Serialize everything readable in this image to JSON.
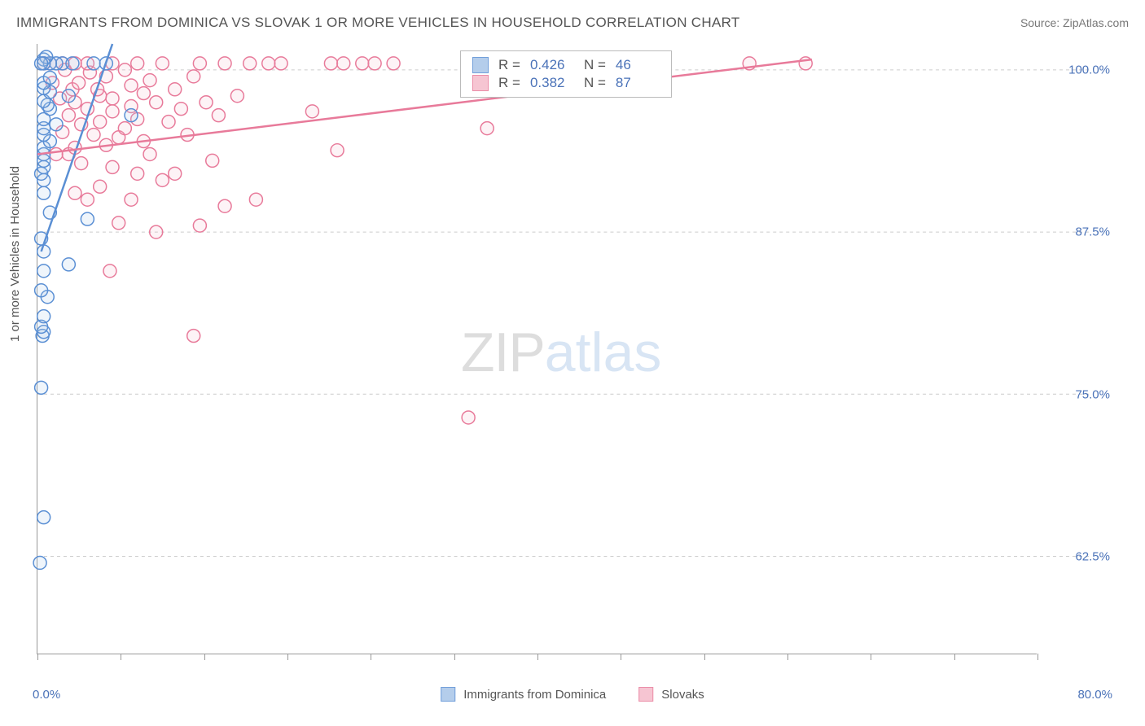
{
  "title": "IMMIGRANTS FROM DOMINICA VS SLOVAK 1 OR MORE VEHICLES IN HOUSEHOLD CORRELATION CHART",
  "source_label": "Source: ",
  "source_value": "ZipAtlas.com",
  "y_axis_title": "1 or more Vehicles in Household",
  "watermark_a": "ZIP",
  "watermark_b": "atlas",
  "chart": {
    "type": "scatter",
    "xlim": [
      0,
      80
    ],
    "ylim": [
      55,
      102
    ],
    "x_ticks": [
      0,
      6.67,
      13.33,
      20,
      26.67,
      33.33,
      40,
      46.67,
      53.33,
      60,
      66.67,
      73.33,
      80
    ],
    "y_gridlines": [
      62.5,
      75.0,
      87.5,
      100.0
    ],
    "y_tick_labels": [
      "62.5%",
      "75.0%",
      "87.5%",
      "100.0%"
    ],
    "x_label_min": "0.0%",
    "x_label_max": "80.0%",
    "background_color": "#ffffff",
    "grid_color": "#cccccc",
    "axis_color": "#999999",
    "tick_label_color": "#4a72b8",
    "marker_radius": 8,
    "marker_stroke_width": 1.5,
    "marker_fill_opacity": 0.18,
    "trend_line_width": 2.5
  },
  "series": [
    {
      "name": "Immigrants from Dominica",
      "color_stroke": "#5a8fd4",
      "color_fill": "#a8c5e8",
      "r_value": "0.426",
      "n_value": "46",
      "trend": {
        "x1": 0.3,
        "y1": 86,
        "x2": 6,
        "y2": 102
      },
      "points": [
        [
          0.2,
          62.0
        ],
        [
          0.5,
          65.5
        ],
        [
          0.3,
          75.5
        ],
        [
          0.4,
          79.5
        ],
        [
          0.5,
          79.8
        ],
        [
          0.3,
          80.2
        ],
        [
          0.5,
          81.0
        ],
        [
          0.8,
          82.5
        ],
        [
          0.3,
          83.0
        ],
        [
          0.5,
          84.5
        ],
        [
          2.5,
          85.0
        ],
        [
          0.5,
          86.0
        ],
        [
          0.3,
          87.0
        ],
        [
          4.0,
          88.5
        ],
        [
          1.0,
          89.0
        ],
        [
          0.5,
          90.5
        ],
        [
          0.5,
          91.5
        ],
        [
          0.3,
          92.0
        ],
        [
          0.5,
          92.5
        ],
        [
          0.5,
          93.0
        ],
        [
          0.5,
          93.5
        ],
        [
          0.5,
          94.0
        ],
        [
          1.0,
          94.5
        ],
        [
          0.5,
          95.0
        ],
        [
          0.5,
          95.5
        ],
        [
          1.5,
          95.8
        ],
        [
          0.5,
          96.2
        ],
        [
          7.5,
          96.5
        ],
        [
          1.0,
          97.0
        ],
        [
          0.8,
          97.3
        ],
        [
          0.5,
          97.6
        ],
        [
          2.5,
          98.0
        ],
        [
          1.0,
          98.3
        ],
        [
          0.5,
          98.6
        ],
        [
          0.5,
          99.0
        ],
        [
          1.0,
          99.4
        ],
        [
          4.5,
          100.5
        ],
        [
          2.0,
          100.5
        ],
        [
          2.8,
          100.5
        ],
        [
          1.5,
          100.5
        ],
        [
          5.5,
          100.5
        ],
        [
          1.0,
          100.5
        ],
        [
          0.5,
          100.8
        ],
        [
          0.7,
          101.0
        ],
        [
          0.5,
          100.5
        ],
        [
          0.3,
          100.5
        ]
      ]
    },
    {
      "name": "Slovaks",
      "color_stroke": "#e87a9a",
      "color_fill": "#f5bccb",
      "r_value": "0.382",
      "n_value": "87",
      "trend": {
        "x1": 0,
        "y1": 93.5,
        "x2": 62,
        "y2": 100.8
      },
      "points": [
        [
          34.5,
          73.2
        ],
        [
          12.5,
          79.5
        ],
        [
          5.8,
          84.5
        ],
        [
          9.5,
          87.5
        ],
        [
          13.0,
          88.0
        ],
        [
          6.5,
          88.2
        ],
        [
          15.0,
          89.5
        ],
        [
          7.5,
          90.0
        ],
        [
          17.5,
          90.0
        ],
        [
          4.0,
          90.0
        ],
        [
          3.0,
          90.5
        ],
        [
          5.0,
          91.0
        ],
        [
          10.0,
          91.5
        ],
        [
          8.0,
          92.0
        ],
        [
          11.0,
          92.0
        ],
        [
          6.0,
          92.5
        ],
        [
          3.5,
          92.8
        ],
        [
          14.0,
          93.0
        ],
        [
          9.0,
          93.5
        ],
        [
          1.5,
          93.5
        ],
        [
          2.5,
          93.5
        ],
        [
          24.0,
          93.8
        ],
        [
          3.0,
          94.0
        ],
        [
          5.5,
          94.2
        ],
        [
          8.5,
          94.5
        ],
        [
          6.5,
          94.8
        ],
        [
          12.0,
          95.0
        ],
        [
          4.5,
          95.0
        ],
        [
          2.0,
          95.2
        ],
        [
          7.0,
          95.5
        ],
        [
          36.0,
          95.5
        ],
        [
          3.5,
          95.8
        ],
        [
          10.5,
          96.0
        ],
        [
          5.0,
          96.0
        ],
        [
          8.0,
          96.2
        ],
        [
          14.5,
          96.5
        ],
        [
          2.5,
          96.5
        ],
        [
          6.0,
          96.8
        ],
        [
          22.0,
          96.8
        ],
        [
          11.5,
          97.0
        ],
        [
          4.0,
          97.0
        ],
        [
          7.5,
          97.2
        ],
        [
          9.5,
          97.5
        ],
        [
          13.5,
          97.5
        ],
        [
          3.0,
          97.5
        ],
        [
          6.0,
          97.8
        ],
        [
          1.8,
          97.8
        ],
        [
          5.0,
          98.0
        ],
        [
          16.0,
          98.0
        ],
        [
          8.5,
          98.2
        ],
        [
          4.8,
          98.5
        ],
        [
          11.0,
          98.5
        ],
        [
          2.8,
          98.5
        ],
        [
          7.5,
          98.8
        ],
        [
          3.3,
          99.0
        ],
        [
          1.2,
          99.0
        ],
        [
          9.0,
          99.2
        ],
        [
          5.5,
          99.5
        ],
        [
          12.5,
          99.5
        ],
        [
          4.2,
          99.8
        ],
        [
          7.0,
          100.0
        ],
        [
          2.2,
          100.0
        ],
        [
          10.0,
          100.5
        ],
        [
          17.0,
          100.5
        ],
        [
          19.5,
          100.5
        ],
        [
          46.5,
          100.5
        ],
        [
          47.5,
          100.5
        ],
        [
          48.5,
          100.5
        ],
        [
          44.5,
          100.5
        ],
        [
          45.5,
          100.5
        ],
        [
          57.0,
          100.5
        ],
        [
          61.5,
          100.5
        ],
        [
          13.0,
          100.5
        ],
        [
          23.5,
          100.5
        ],
        [
          24.5,
          100.5
        ],
        [
          26.0,
          100.5
        ],
        [
          27.0,
          100.5
        ],
        [
          28.5,
          100.5
        ],
        [
          18.5,
          100.5
        ],
        [
          15.0,
          100.5
        ],
        [
          8.0,
          100.5
        ],
        [
          6.0,
          100.5
        ],
        [
          4.0,
          100.5
        ],
        [
          3.0,
          100.5
        ],
        [
          2.0,
          100.5
        ],
        [
          1.0,
          100.5
        ],
        [
          0.5,
          100.5
        ]
      ]
    }
  ],
  "stats_box": {
    "r_label": "R =",
    "n_label": "N ="
  },
  "legend": {
    "label_a": "Immigrants from Dominica",
    "label_b": "Slovaks"
  }
}
